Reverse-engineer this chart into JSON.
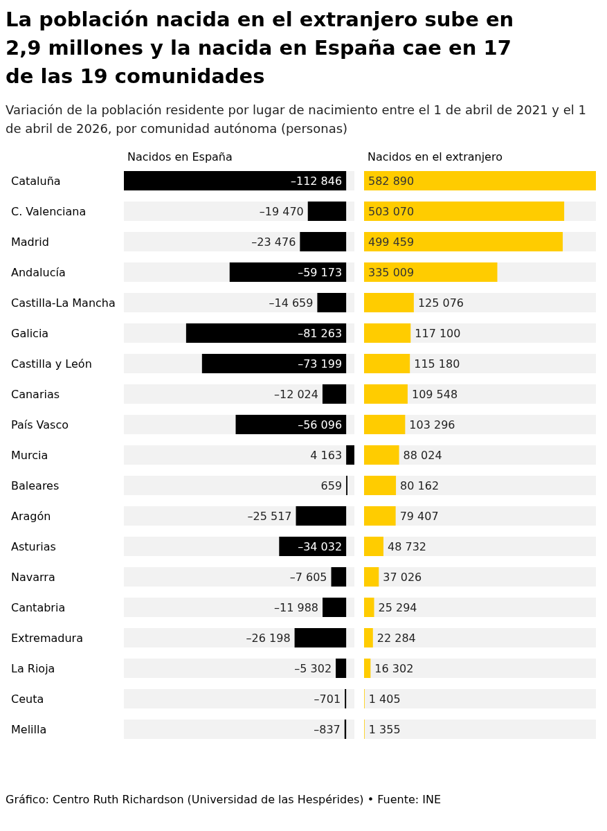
{
  "chart_data": [
    {
      "type": "bar",
      "orientation": "horizontal",
      "title": "La población nacida en el extranjero sube en 2,9 millones y la nacida en España cae en 17 de las 19 comunidades",
      "subtitle": "Variación de la población residente por lugar de nacimiento entre el 1 de abril de 2021 y el 1 de abril de 2026, por comunidad autónoma (personas)",
      "annotations": [
        "Gráfico: Centro Ruth Richardson (Universidad de las Hespérides) • Fuente: INE"
      ],
      "tick_labels": "y",
      "categories": [
        "Cataluña",
        "C. Valenciana",
        "Madrid",
        "Andalucía",
        "Castilla-La Mancha",
        "Galicia",
        "Castilla y León",
        "Canarias",
        "País Vasco",
        "Murcia",
        "Baleares",
        "Aragón",
        "Asturias",
        "Navarra",
        "Cantabria",
        "Extremadura",
        "La Rioja",
        "Ceuta",
        "Melilla"
      ],
      "series": [
        {
          "name": "Nacidos en España",
          "color": "#000000",
          "values": [
            -112846,
            -19470,
            -23476,
            -59173,
            -14659,
            -81263,
            -73199,
            -12024,
            -56096,
            4163,
            659,
            -25517,
            -34032,
            -7605,
            -11988,
            -26198,
            -5302,
            -701,
            -837
          ],
          "value_labels": [
            "–112 846",
            "–19 470",
            "–23 476",
            "–59 173",
            "–14 659",
            "–81 263",
            "–73 199",
            "–12 024",
            "–56 096",
            "4 163",
            "659",
            "–25 517",
            "–34 032",
            "–7 605",
            "–11 988",
            "–26 198",
            "–5 302",
            "–701",
            "–837"
          ]
        }
      ]
    },
    {
      "type": "bar",
      "orientation": "horizontal",
      "tick_labels": false,
      "series": [
        {
          "name": "Nacidos en el extranjero",
          "color": "#ffcc00",
          "values": [
            582890,
            503070,
            499459,
            335009,
            125076,
            117100,
            115180,
            109548,
            103296,
            88024,
            80162,
            79407,
            48732,
            37026,
            25294,
            22284,
            16302,
            1405,
            1355
          ],
          "value_labels": [
            "582 890",
            "503 070",
            "499 459",
            "335 009",
            "125 076",
            "117 100",
            "115 180",
            "109 548",
            "103 296",
            "88 024",
            "80 162",
            "79 407",
            "48 732",
            "37 026",
            "25 294",
            "22 284",
            "16 302",
            "1 405",
            "1 355"
          ]
        }
      ]
    }
  ]
}
